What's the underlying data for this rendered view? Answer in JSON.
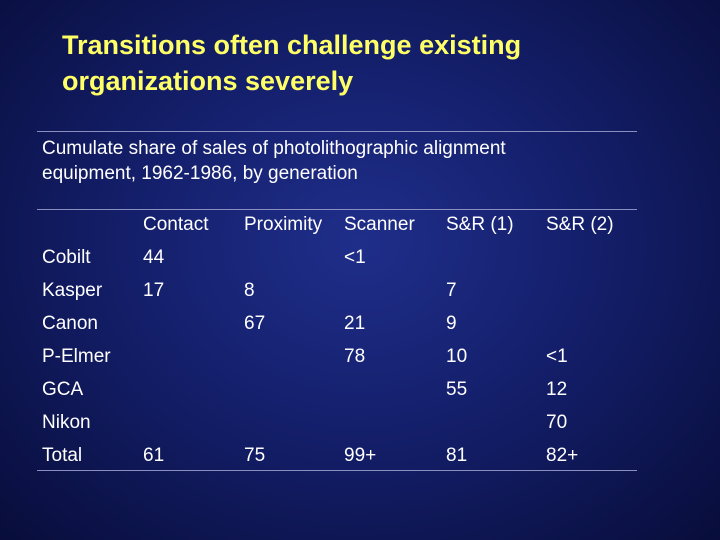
{
  "slide": {
    "title_line1": "Transitions often challenge existing",
    "title_line2": "organizations severely",
    "caption_line1": "Cumulate share of sales of photolithographic alignment",
    "caption_line2": "equipment, 1962-1986, by generation"
  },
  "table": {
    "headers": [
      "",
      "Contact",
      "Proximity",
      "Scanner",
      "S&R (1)",
      "S&R (2)"
    ],
    "rows": [
      [
        "Cobilt",
        "44",
        "",
        "<1",
        "",
        ""
      ],
      [
        "Kasper",
        "17",
        "8",
        "",
        "7",
        ""
      ],
      [
        "Canon",
        "",
        "67",
        "21",
        "9",
        ""
      ],
      [
        "P-Elmer",
        "",
        "",
        "78",
        "10",
        "<1"
      ],
      [
        "GCA",
        "",
        "",
        "",
        "55",
        "12"
      ],
      [
        "Nikon",
        "",
        "",
        "",
        "",
        "70"
      ],
      [
        "Total",
        "61",
        "75",
        "99+",
        "81",
        "82+"
      ]
    ]
  },
  "colors": {
    "title": "#ffff66",
    "text": "#ffffff",
    "background": "#141f6b",
    "rule": "#8a8fc0"
  }
}
